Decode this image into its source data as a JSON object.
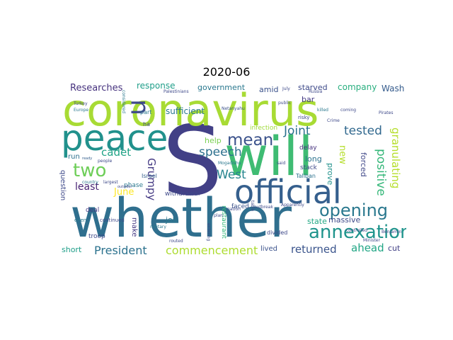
{
  "title": "2020-06",
  "words": [
    {
      "text": "whether",
      "color": "#2f6f8e"
    },
    {
      "text": "S",
      "color": "#424086"
    },
    {
      "text": "coronavirus",
      "color": "#a8db34"
    },
    {
      "text": "will",
      "color": "#3fbc73"
    },
    {
      "text": "official",
      "color": "#355f8d"
    },
    {
      "text": "peace",
      "color": "#21918c"
    },
    {
      "text": "u",
      "color": "#3e4989"
    },
    {
      "text": "annexation",
      "color": "#1f948c"
    },
    {
      "text": "opening",
      "color": "#2a788e"
    },
    {
      "text": "mean",
      "color": "#3b528b"
    },
    {
      "text": "Joint",
      "color": "#2c728e"
    },
    {
      "text": "tested",
      "color": "#31688e"
    },
    {
      "text": "two",
      "color": "#6ece58"
    },
    {
      "text": "speech",
      "color": "#2d708e"
    },
    {
      "text": "West",
      "color": "#25848e"
    },
    {
      "text": "President",
      "color": "#2c728e"
    },
    {
      "text": "commencement",
      "color": "#addc30"
    },
    {
      "text": "returned",
      "color": "#3a548c"
    },
    {
      "text": "ahead",
      "color": "#21a685"
    },
    {
      "text": "positive",
      "color": "#35b779"
    },
    {
      "text": "granulating",
      "color": "#b5de2b"
    },
    {
      "text": "Grumpy",
      "color": "#443983"
    },
    {
      "text": "Researches",
      "color": "#46327e"
    },
    {
      "text": "response",
      "color": "#1f9e89"
    },
    {
      "text": "company",
      "color": "#29af7f"
    },
    {
      "text": "Wash",
      "color": "#365c8d"
    },
    {
      "text": "government",
      "color": "#2a788e"
    },
    {
      "text": "starved",
      "color": "#3e4a89"
    },
    {
      "text": "amid",
      "color": "#3b528b"
    },
    {
      "text": "bar",
      "color": "#443a83"
    },
    {
      "text": "sufficient",
      "color": "#2a788e"
    },
    {
      "text": "infection",
      "color": "#9fda3a"
    },
    {
      "text": "cadet",
      "color": "#20a386"
    },
    {
      "text": "June",
      "color": "#fde725"
    },
    {
      "text": "least",
      "color": "#482374"
    },
    {
      "text": "question",
      "color": "#3e4989"
    },
    {
      "text": "make",
      "color": "#443983"
    },
    {
      "text": "run",
      "color": "#2d708e"
    },
    {
      "text": "job",
      "color": "#2a788e"
    },
    {
      "text": "state",
      "color": "#22a884"
    },
    {
      "text": "massive",
      "color": "#3e4989"
    },
    {
      "text": "short",
      "color": "#1f9e89"
    },
    {
      "text": "lived",
      "color": "#3b528b"
    },
    {
      "text": "cut",
      "color": "#424086"
    },
    {
      "text": "long",
      "color": "#2c728e"
    },
    {
      "text": "prove",
      "color": "#21918c"
    },
    {
      "text": "new",
      "color": "#b5de2b"
    },
    {
      "text": "forced",
      "color": "#3f4788"
    },
    {
      "text": "help",
      "color": "#7ad151"
    },
    {
      "text": "delay",
      "color": "#46327e"
    },
    {
      "text": "stack",
      "color": "#3e4989"
    },
    {
      "text": "restaurant",
      "color": "#35b779"
    },
    {
      "text": "faced",
      "color": "#3b528b"
    },
    {
      "text": "troop",
      "color": "#3e4989"
    },
    {
      "text": "phase",
      "color": "#2a788e"
    },
    {
      "text": "withdrawal",
      "color": "#3e4989"
    },
    {
      "text": "Israel",
      "color": "#355f8d"
    },
    {
      "text": "deal",
      "color": "#443a83"
    },
    {
      "text": "Taliban",
      "color": "#2c728e"
    },
    {
      "text": "divided",
      "color": "#3e4989"
    },
    {
      "text": "part",
      "color": "#2a788e"
    },
    {
      "text": "ha",
      "color": "#3f4788"
    },
    {
      "text": "Palestinians",
      "color": "#3e4989"
    },
    {
      "text": "Netanyahu",
      "color": "#3b528b"
    },
    {
      "text": "Minister",
      "color": "#3e4989"
    },
    {
      "text": "Benjamin",
      "color": "#3e4989"
    },
    {
      "text": "considered",
      "color": "#2a788e"
    },
    {
      "text": "Turkey",
      "color": "#3e4989"
    },
    {
      "text": "Europe",
      "color": "#2a788e"
    },
    {
      "text": "people",
      "color": "#3e4989"
    },
    {
      "text": "ready",
      "color": "#355f8d"
    },
    {
      "text": "country",
      "color": "#2a788e"
    },
    {
      "text": "largest",
      "color": "#3e4989"
    },
    {
      "text": "even",
      "color": "#2a788e"
    },
    {
      "text": "continued",
      "color": "#3e4989"
    },
    {
      "text": "military",
      "color": "#2a788e"
    },
    {
      "text": "outsider",
      "color": "#3e4989"
    },
    {
      "text": "nation",
      "color": "#3e4989"
    },
    {
      "text": "Mogadishu",
      "color": "#2a788e"
    },
    {
      "text": "plan",
      "color": "#3e4989"
    },
    {
      "text": "public",
      "color": "#3e4989"
    },
    {
      "text": "risky",
      "color": "#3e4989"
    },
    {
      "text": "killed",
      "color": "#2a788e"
    },
    {
      "text": "coming",
      "color": "#3e4989"
    },
    {
      "text": "Crime",
      "color": "#3e4989"
    },
    {
      "text": "Pirates",
      "color": "#3e4989"
    },
    {
      "text": "Russia",
      "color": "#3e4989"
    },
    {
      "text": "July",
      "color": "#3e4989"
    },
    {
      "text": "said",
      "color": "#3e4989"
    },
    {
      "text": "table",
      "color": "#3e4989"
    },
    {
      "text": "outbreak",
      "color": "#3e4989"
    },
    {
      "text": "Apparently",
      "color": "#3e4989"
    },
    {
      "text": "controlled",
      "color": "#3e4989"
    },
    {
      "text": "entering",
      "color": "#3e4989"
    },
    {
      "text": "routed",
      "color": "#3e4989"
    }
  ]
}
